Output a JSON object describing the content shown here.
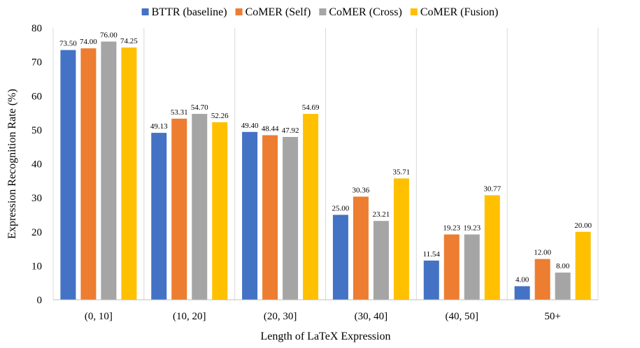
{
  "chart_data": {
    "type": "bar",
    "title": "",
    "xlabel": "Length of LaTeX Expression",
    "ylabel": "Expression Recognition Rate (%)",
    "ylim": [
      0,
      80
    ],
    "yticks": [
      0,
      10,
      20,
      30,
      40,
      50,
      60,
      70,
      80
    ],
    "grid": "vertical separators between categories",
    "legend_position": "top-center",
    "categories": [
      "(0, 10]",
      "(10, 20]",
      "(20, 30]",
      "(30, 40]",
      "(40, 50]",
      "50+"
    ],
    "series": [
      {
        "name": "BTTR (baseline)",
        "color": "#4472C4",
        "values": [
          73.5,
          49.13,
          49.4,
          25.0,
          11.54,
          4.0
        ],
        "labels": [
          "73.50",
          "49.13",
          "49.40",
          "25.00",
          "11.54",
          "4.00"
        ]
      },
      {
        "name": "CoMER (Self)",
        "color": "#ED7D31",
        "values": [
          74.0,
          53.31,
          48.44,
          30.36,
          19.23,
          12.0
        ],
        "labels": [
          "74.00",
          "53.31",
          "48.44",
          "30.36",
          "19.23",
          "12.00"
        ]
      },
      {
        "name": "CoMER (Cross)",
        "color": "#A5A5A5",
        "values": [
          76.0,
          54.7,
          47.92,
          23.21,
          19.23,
          8.0
        ],
        "labels": [
          "76.00",
          "54.70",
          "47.92",
          "23.21",
          "19.23",
          "8.00"
        ]
      },
      {
        "name": "CoMER (Fusion)",
        "color": "#FFC000",
        "values": [
          74.25,
          52.26,
          54.69,
          35.71,
          30.77,
          20.0
        ],
        "labels": [
          "74.25",
          "52.26",
          "54.69",
          "35.71",
          "30.77",
          "20.00"
        ]
      }
    ]
  }
}
